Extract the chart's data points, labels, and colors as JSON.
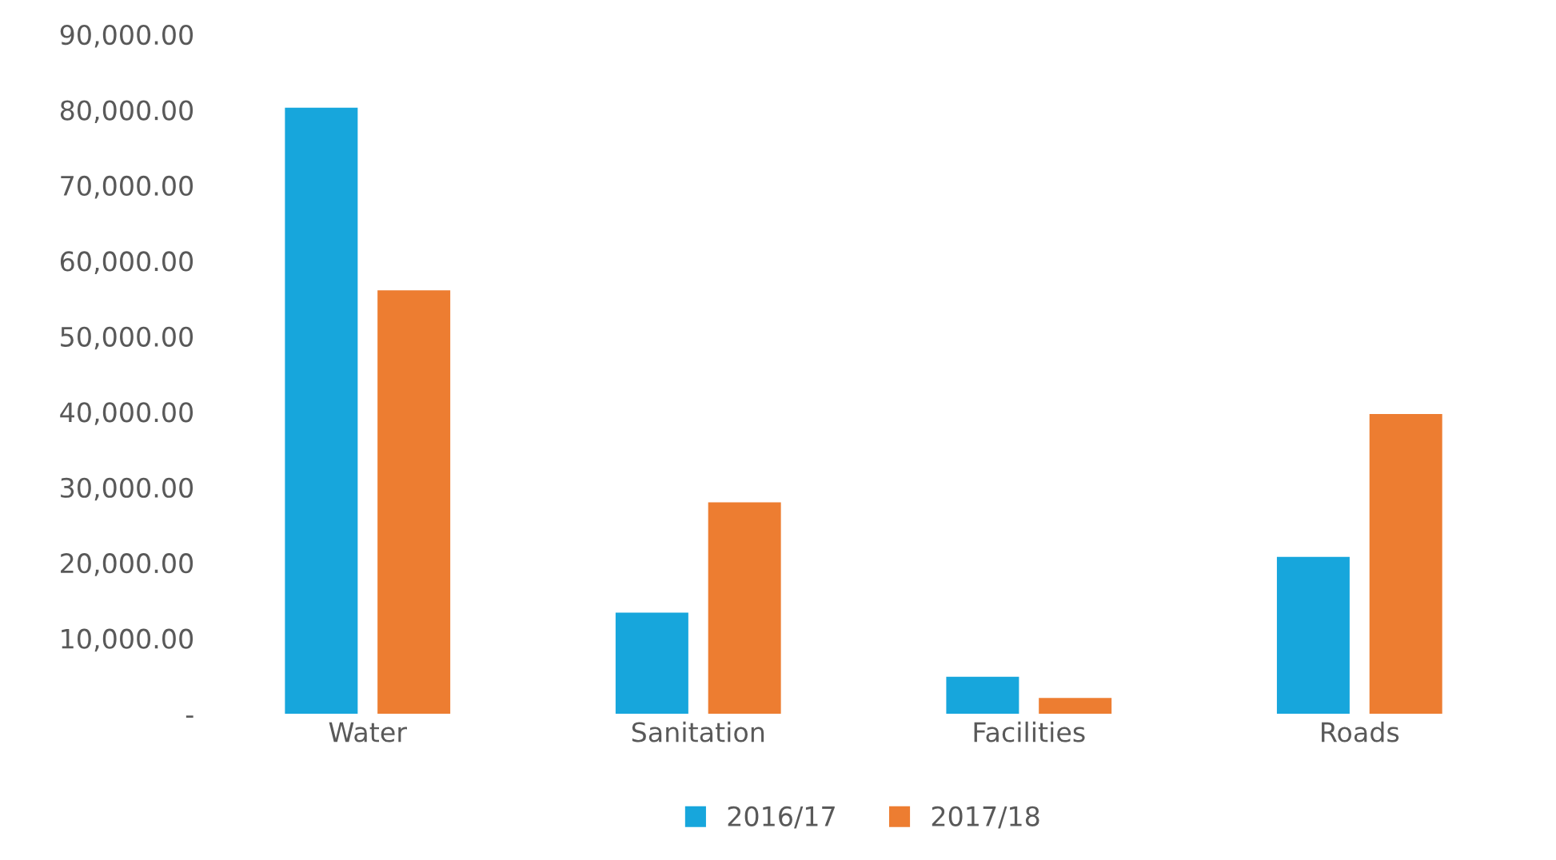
{
  "chart_data": {
    "type": "bar",
    "categories": [
      "Water",
      "Sanitation",
      "Facilities",
      "Roads"
    ],
    "series": [
      {
        "name": "2016/17",
        "color": "#17a6dc",
        "values": [
          80300,
          13400,
          4900,
          20800
        ]
      },
      {
        "name": "2017/18",
        "color": "#ed7d31",
        "values": [
          56100,
          28000,
          2100,
          39700
        ]
      }
    ],
    "ylim": [
      0,
      90000
    ],
    "yticks": [
      {
        "value": 0,
        "label": "-"
      },
      {
        "value": 10000,
        "label": "10,000.00"
      },
      {
        "value": 20000,
        "label": "20,000.00"
      },
      {
        "value": 30000,
        "label": "30,000.00"
      },
      {
        "value": 40000,
        "label": "40,000.00"
      },
      {
        "value": 50000,
        "label": "50,000.00"
      },
      {
        "value": 60000,
        "label": "60,000.00"
      },
      {
        "value": 70000,
        "label": "70,000.00"
      },
      {
        "value": 80000,
        "label": "80,000.00"
      },
      {
        "value": 90000,
        "label": "90,000.00"
      }
    ],
    "grid": false,
    "legend": "bottom"
  }
}
